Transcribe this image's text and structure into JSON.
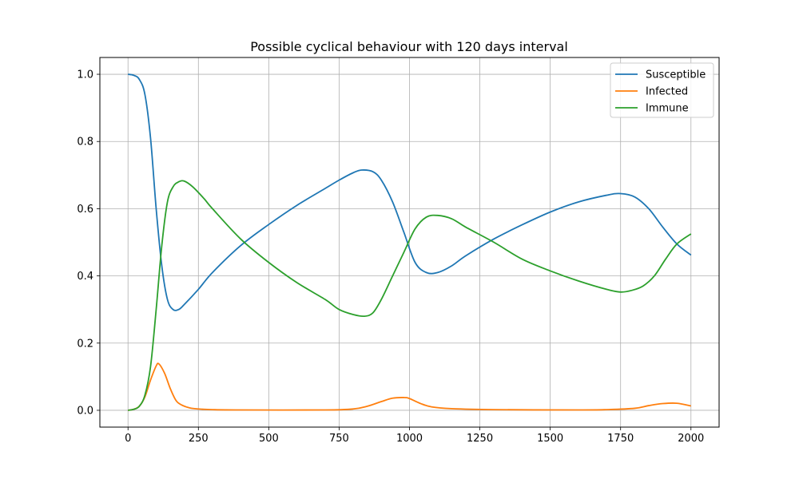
{
  "chart_data": {
    "type": "line",
    "title": "Possible cyclical behaviour with 120 days interval",
    "xlabel": "",
    "ylabel": "",
    "xlim": [
      -100,
      2100
    ],
    "ylim": [
      -0.05,
      1.05
    ],
    "xticks": [
      0,
      250,
      500,
      750,
      1000,
      1250,
      1500,
      1750,
      2000
    ],
    "xtick_labels": [
      "0",
      "250",
      "500",
      "750",
      "1000",
      "1250",
      "1500",
      "1750",
      "2000"
    ],
    "yticks": [
      0.0,
      0.2,
      0.4,
      0.6,
      0.8,
      1.0
    ],
    "ytick_labels": [
      "0.0",
      "0.2",
      "0.4",
      "0.6",
      "0.8",
      "1.0"
    ],
    "grid": true,
    "legend_position": "top-right",
    "series": [
      {
        "name": "Susceptible",
        "color": "#1f77b4",
        "x": [
          0,
          20,
          40,
          60,
          80,
          100,
          120,
          140,
          160,
          180,
          200,
          250,
          300,
          400,
          500,
          600,
          700,
          750,
          800,
          830,
          870,
          900,
          940,
          980,
          1020,
          1060,
          1100,
          1150,
          1200,
          1300,
          1400,
          1500,
          1600,
          1700,
          1750,
          1800,
          1850,
          1900,
          1950,
          2000
        ],
        "values": [
          1.0,
          0.997,
          0.985,
          0.94,
          0.81,
          0.6,
          0.43,
          0.33,
          0.3,
          0.3,
          0.315,
          0.36,
          0.41,
          0.49,
          0.553,
          0.61,
          0.66,
          0.685,
          0.707,
          0.715,
          0.71,
          0.685,
          0.62,
          0.53,
          0.44,
          0.41,
          0.41,
          0.43,
          0.46,
          0.51,
          0.552,
          0.59,
          0.62,
          0.64,
          0.645,
          0.635,
          0.6,
          0.545,
          0.495,
          0.462
        ]
      },
      {
        "name": "Infected",
        "color": "#ff7f0e",
        "x": [
          0,
          20,
          40,
          60,
          80,
          100,
          110,
          130,
          150,
          170,
          190,
          220,
          250,
          300,
          400,
          700,
          800,
          850,
          900,
          940,
          980,
          1000,
          1040,
          1080,
          1150,
          1300,
          1600,
          1700,
          1800,
          1850,
          1900,
          1950,
          2000
        ],
        "values": [
          0.0,
          0.003,
          0.012,
          0.04,
          0.09,
          0.132,
          0.138,
          0.11,
          0.065,
          0.03,
          0.016,
          0.007,
          0.004,
          0.002,
          0.001,
          0.001,
          0.004,
          0.012,
          0.026,
          0.036,
          0.038,
          0.035,
          0.02,
          0.01,
          0.005,
          0.002,
          0.001,
          0.002,
          0.006,
          0.014,
          0.02,
          0.021,
          0.013
        ]
      },
      {
        "name": "Immune",
        "color": "#2ca02c",
        "x": [
          0,
          20,
          40,
          60,
          80,
          100,
          120,
          140,
          160,
          180,
          200,
          230,
          270,
          300,
          400,
          500,
          600,
          700,
          750,
          800,
          840,
          870,
          900,
          940,
          980,
          1020,
          1060,
          1100,
          1150,
          1200,
          1300,
          1400,
          1500,
          1600,
          1700,
          1750,
          1790,
          1830,
          1870,
          1910,
          1950,
          2000
        ],
        "values": [
          0.0,
          0.003,
          0.012,
          0.045,
          0.13,
          0.3,
          0.49,
          0.62,
          0.665,
          0.68,
          0.682,
          0.665,
          0.63,
          0.6,
          0.51,
          0.44,
          0.38,
          0.33,
          0.3,
          0.285,
          0.28,
          0.29,
          0.33,
          0.4,
          0.47,
          0.54,
          0.575,
          0.58,
          0.57,
          0.545,
          0.5,
          0.45,
          0.415,
          0.385,
          0.36,
          0.352,
          0.357,
          0.37,
          0.4,
          0.45,
          0.495,
          0.525
        ]
      }
    ]
  }
}
